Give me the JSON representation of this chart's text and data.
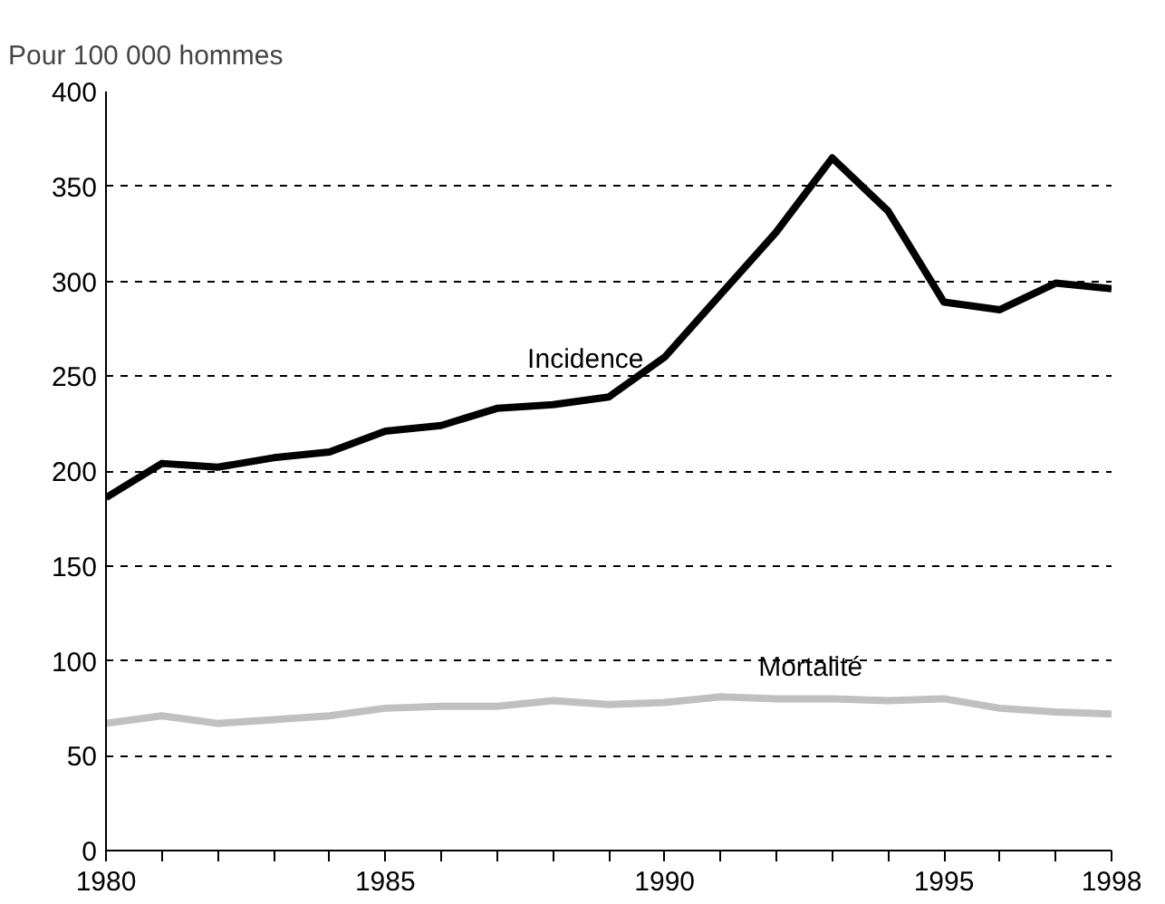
{
  "chart_data": {
    "type": "line",
    "ylabel": "Pour 100 000 hommes",
    "x": [
      1980,
      1981,
      1982,
      1983,
      1984,
      1985,
      1986,
      1987,
      1988,
      1989,
      1990,
      1991,
      1992,
      1993,
      1994,
      1995,
      1996,
      1997,
      1998
    ],
    "series": [
      {
        "name": "Incidence",
        "color": "#000000",
        "values": [
          186,
          204,
          202,
          207,
          210,
          221,
          224,
          233,
          235,
          239,
          260,
          293,
          326,
          365,
          337,
          289,
          285,
          299,
          296
        ]
      },
      {
        "name": "Mortalité",
        "color": "#c0c0c0",
        "values": [
          67,
          71,
          67,
          69,
          71,
          75,
          76,
          76,
          79,
          77,
          78,
          81,
          80,
          80,
          79,
          80,
          75,
          73,
          72
        ]
      }
    ],
    "xlim": [
      1980,
      1998
    ],
    "ylim": [
      0,
      400
    ],
    "xticks": [
      1980,
      {
        "value": 1981,
        "label": null
      },
      {
        "value": 1982,
        "label": null
      },
      {
        "value": 1983,
        "label": null
      },
      {
        "value": 1984,
        "label": null
      },
      1985,
      {
        "value": 1986,
        "label": null
      },
      {
        "value": 1987,
        "label": null
      },
      {
        "value": 1988,
        "label": null
      },
      {
        "value": 1989,
        "label": null
      },
      1990,
      {
        "value": 1991,
        "label": null
      },
      {
        "value": 1992,
        "label": null
      },
      {
        "value": 1993,
        "label": null
      },
      {
        "value": 1994,
        "label": null
      },
      1995,
      {
        "value": 1996,
        "label": null
      },
      {
        "value": 1997,
        "label": null
      },
      1998
    ],
    "yticks": [
      0,
      50,
      100,
      150,
      200,
      250,
      300,
      350,
      400
    ],
    "grid": "y",
    "line_style": "solid",
    "marker": "none"
  }
}
